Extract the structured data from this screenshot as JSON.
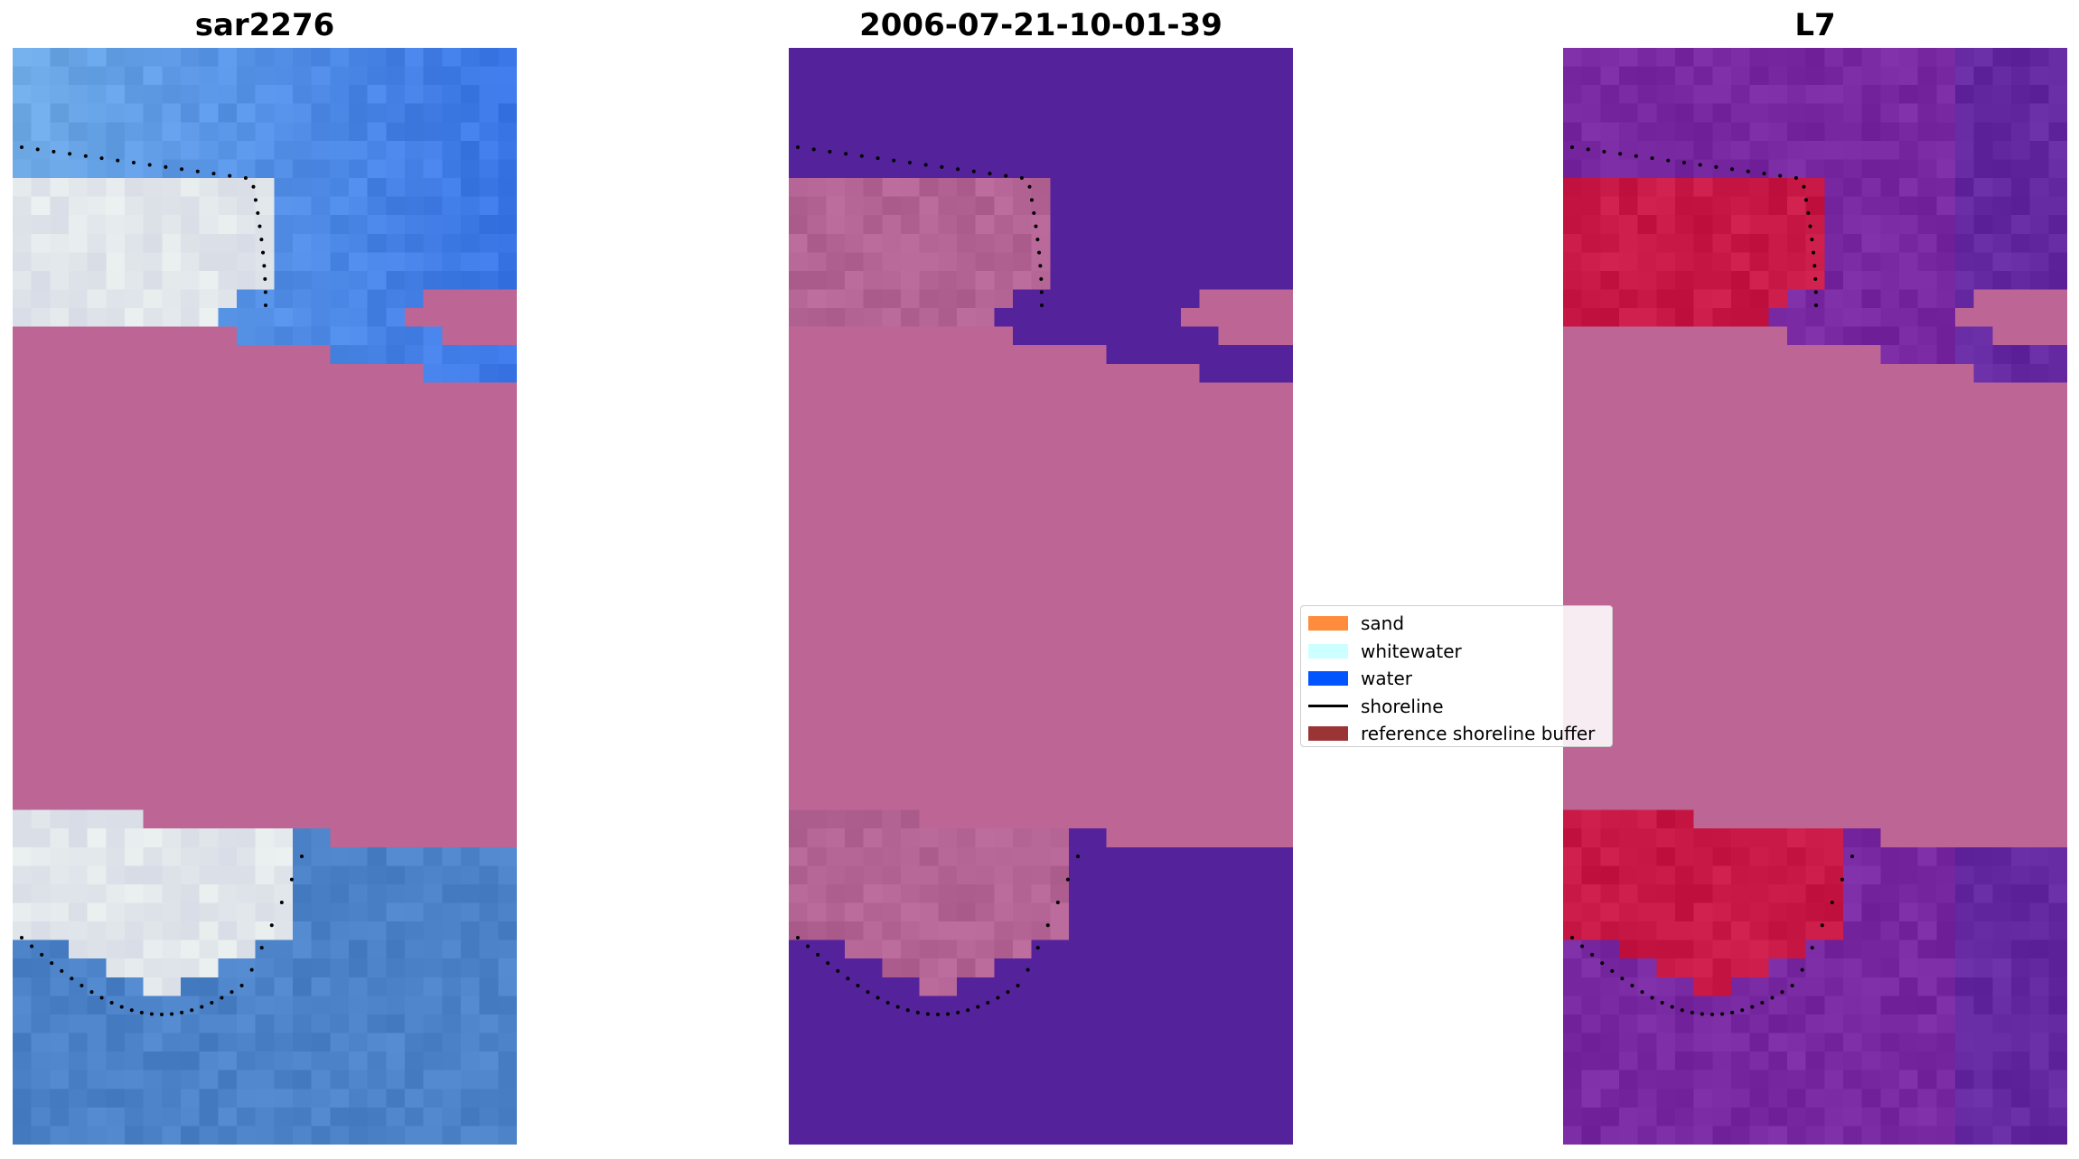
{
  "panels": [
    {
      "id": "rgb",
      "title": "sar2276"
    },
    {
      "id": "classification",
      "title": "2006-07-21-10-01-39"
    },
    {
      "id": "index",
      "title": "L7"
    }
  ],
  "legend": {
    "items": [
      {
        "label": "sand",
        "color": "#ff8c3c",
        "kind": "patch"
      },
      {
        "label": "whitewater",
        "color": "#ccffff",
        "kind": "patch"
      },
      {
        "label": "water",
        "color": "#0055ff",
        "kind": "patch"
      },
      {
        "label": "shoreline",
        "color": "#000000",
        "kind": "line"
      },
      {
        "label": "reference shoreline buffer",
        "color": "#9b3535",
        "kind": "patch"
      }
    ]
  },
  "colors": {
    "mask": "#bd6696",
    "class_water": "#54229a",
    "class_sand": "#b46494",
    "index_low": "#5e0aa8",
    "index_high": "#cc0a3a"
  }
}
